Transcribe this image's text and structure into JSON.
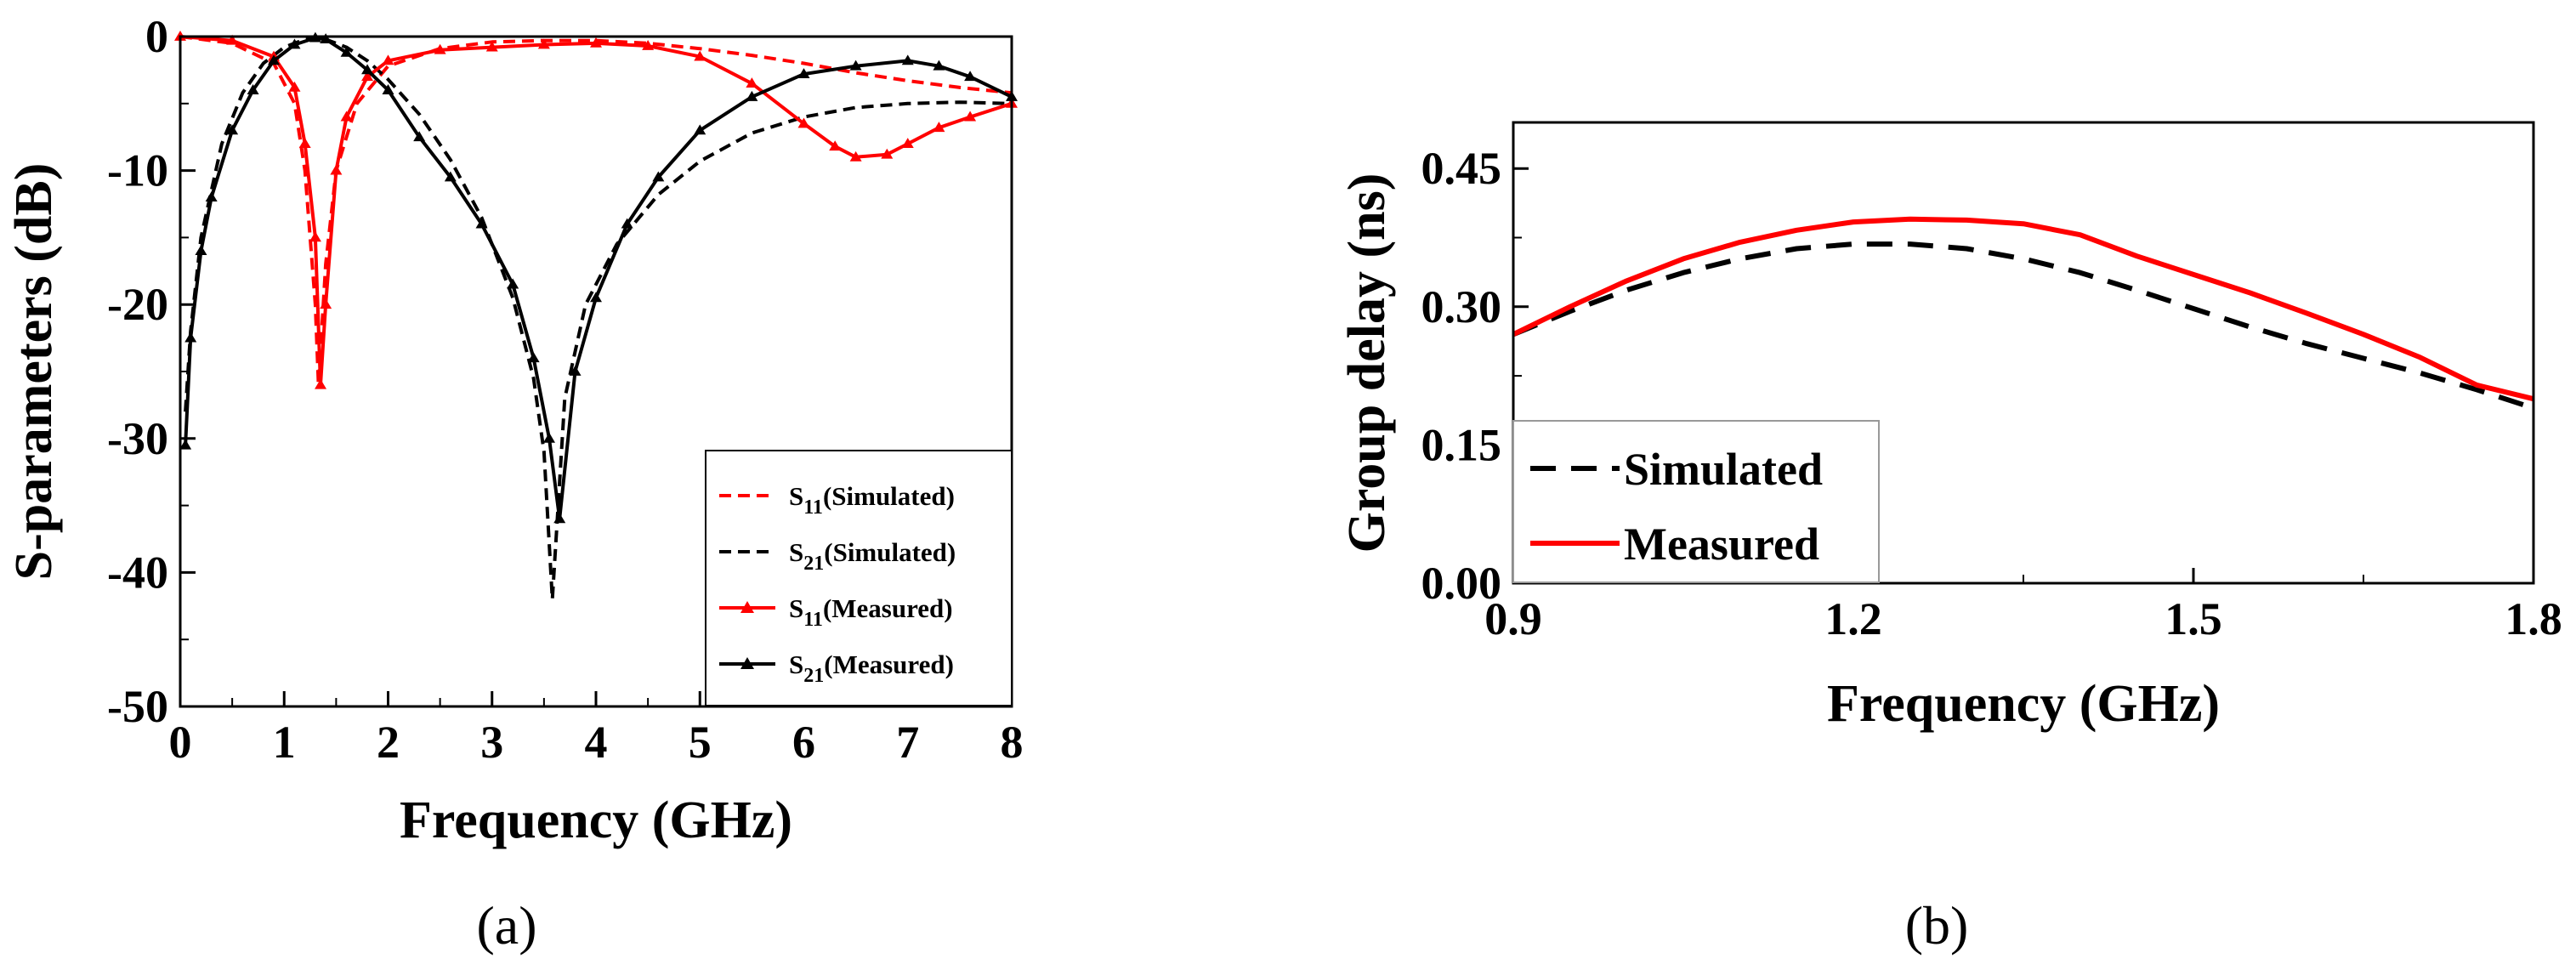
{
  "chart_data": [
    {
      "type": "line",
      "panel": "a",
      "caption": "(a)",
      "xlabel": "Frequency (GHz)",
      "ylabel": "S-parameters (dB)",
      "xlim": [
        0,
        8
      ],
      "ylim": [
        -50,
        0
      ],
      "xticks": [
        "0",
        "1",
        "2",
        "3",
        "4",
        "5",
        "6",
        "7",
        "8"
      ],
      "yticks": [
        "0",
        "-10",
        "-20",
        "-30",
        "-40",
        "-50"
      ],
      "legend_position": "lower-right",
      "series": [
        {
          "name": "S11(Simulated)",
          "legend_main": "S",
          "legend_sub": "11",
          "legend_rest": "(Simulated)",
          "color": "#ff0000",
          "dash": "dashed",
          "marker": "none",
          "x": [
            0,
            0.5,
            0.9,
            1.1,
            1.2,
            1.3,
            1.33,
            1.4,
            1.5,
            1.7,
            2.0,
            2.5,
            3.0,
            3.5,
            4.0,
            4.5,
            5.0,
            5.5,
            6.0,
            6.5,
            7.0,
            7.5,
            8.0
          ],
          "y": [
            0,
            -0.5,
            -2,
            -5,
            -10,
            -20,
            -26,
            -17,
            -10,
            -5,
            -2.2,
            -0.9,
            -0.4,
            -0.3,
            -0.3,
            -0.5,
            -0.9,
            -1.4,
            -2.0,
            -2.7,
            -3.3,
            -3.8,
            -4.2
          ]
        },
        {
          "name": "S21(Simulated)",
          "legend_main": "S",
          "legend_sub": "21",
          "legend_rest": "(Simulated)",
          "color": "#000000",
          "dash": "dashed",
          "marker": "none",
          "x": [
            0.05,
            0.1,
            0.2,
            0.4,
            0.6,
            0.8,
            1.0,
            1.2,
            1.4,
            1.6,
            1.8,
            2.0,
            2.3,
            2.6,
            2.9,
            3.2,
            3.4,
            3.5,
            3.58,
            3.7,
            3.9,
            4.2,
            4.6,
            5.0,
            5.5,
            6.0,
            6.5,
            7.0,
            7.5,
            8.0
          ],
          "y": [
            -28,
            -22,
            -15,
            -8,
            -4.2,
            -2,
            -0.8,
            -0.2,
            -0.2,
            -0.8,
            -1.8,
            -3.2,
            -5.8,
            -9.2,
            -13.5,
            -19.5,
            -25.5,
            -31,
            -42,
            -27,
            -20,
            -15.5,
            -11.8,
            -9.3,
            -7.2,
            -6,
            -5.3,
            -5,
            -4.9,
            -5
          ]
        },
        {
          "name": "S11(Measured)",
          "legend_main": "S",
          "legend_sub": "11",
          "legend_rest": "(Measured)",
          "color": "#ff0000",
          "dash": "solid",
          "marker": "triangle",
          "x": [
            0,
            0.5,
            0.9,
            1.1,
            1.2,
            1.3,
            1.35,
            1.4,
            1.5,
            1.6,
            1.8,
            2.0,
            2.5,
            3.0,
            3.5,
            4.0,
            4.5,
            5.0,
            5.5,
            6.0,
            6.3,
            6.5,
            6.8,
            7.0,
            7.3,
            7.6,
            8.0
          ],
          "y": [
            0,
            -0.3,
            -1.5,
            -3.8,
            -8,
            -15,
            -26,
            -20,
            -10,
            -6,
            -3,
            -1.8,
            -1,
            -0.8,
            -0.6,
            -0.5,
            -0.7,
            -1.5,
            -3.5,
            -6.5,
            -8.2,
            -9,
            -8.8,
            -8,
            -6.8,
            -6,
            -5
          ]
        },
        {
          "name": "S21(Measured)",
          "legend_main": "S",
          "legend_sub": "21",
          "legend_rest": "(Measured)",
          "color": "#000000",
          "dash": "solid",
          "marker": "triangle",
          "x": [
            0.05,
            0.1,
            0.2,
            0.3,
            0.5,
            0.7,
            0.9,
            1.1,
            1.3,
            1.4,
            1.6,
            1.8,
            2.0,
            2.3,
            2.6,
            2.9,
            3.2,
            3.4,
            3.55,
            3.65,
            3.8,
            4.0,
            4.3,
            4.6,
            5.0,
            5.5,
            6.0,
            6.5,
            7.0,
            7.3,
            7.6,
            8.0
          ],
          "y": [
            -30.5,
            -22.5,
            -16,
            -12,
            -7,
            -4,
            -1.8,
            -0.6,
            -0.1,
            -0.2,
            -1.2,
            -2.5,
            -4,
            -7.5,
            -10.5,
            -14,
            -18.5,
            -24,
            -30,
            -36,
            -25,
            -19.5,
            -14,
            -10.5,
            -7,
            -4.5,
            -2.8,
            -2.2,
            -1.8,
            -2.2,
            -3,
            -4.5
          ]
        }
      ]
    },
    {
      "type": "line",
      "panel": "b",
      "caption": "(b)",
      "xlabel": "Frequency (GHz)",
      "ylabel": "Group delay (ns)",
      "xlim": [
        0.9,
        1.8
      ],
      "ylim": [
        0,
        0.5
      ],
      "xticks": [
        "0.9",
        "1.2",
        "1.5",
        "1.8"
      ],
      "yticks": [
        "0.00",
        "0.15",
        "0.30",
        "0.45"
      ],
      "legend_position": "lower-left",
      "series": [
        {
          "name": "Simulated",
          "color": "#000000",
          "dash": "dashed",
          "x": [
            0.9,
            0.95,
            1.0,
            1.05,
            1.1,
            1.15,
            1.2,
            1.25,
            1.3,
            1.35,
            1.4,
            1.45,
            1.5,
            1.55,
            1.6,
            1.65,
            1.7,
            1.75,
            1.8
          ],
          "y": [
            0.27,
            0.295,
            0.318,
            0.337,
            0.352,
            0.363,
            0.368,
            0.368,
            0.363,
            0.352,
            0.337,
            0.318,
            0.298,
            0.278,
            0.26,
            0.244,
            0.228,
            0.21,
            0.19
          ]
        },
        {
          "name": "Measured",
          "color": "#ff0000",
          "dash": "solid",
          "x": [
            0.9,
            0.95,
            1.0,
            1.05,
            1.1,
            1.15,
            1.2,
            1.25,
            1.3,
            1.35,
            1.4,
            1.45,
            1.5,
            1.55,
            1.6,
            1.65,
            1.7,
            1.75,
            1.8
          ],
          "y": [
            0.27,
            0.3,
            0.328,
            0.352,
            0.37,
            0.383,
            0.392,
            0.395,
            0.394,
            0.39,
            0.378,
            0.355,
            0.335,
            0.315,
            0.293,
            0.27,
            0.245,
            0.215,
            0.2
          ]
        }
      ]
    }
  ]
}
